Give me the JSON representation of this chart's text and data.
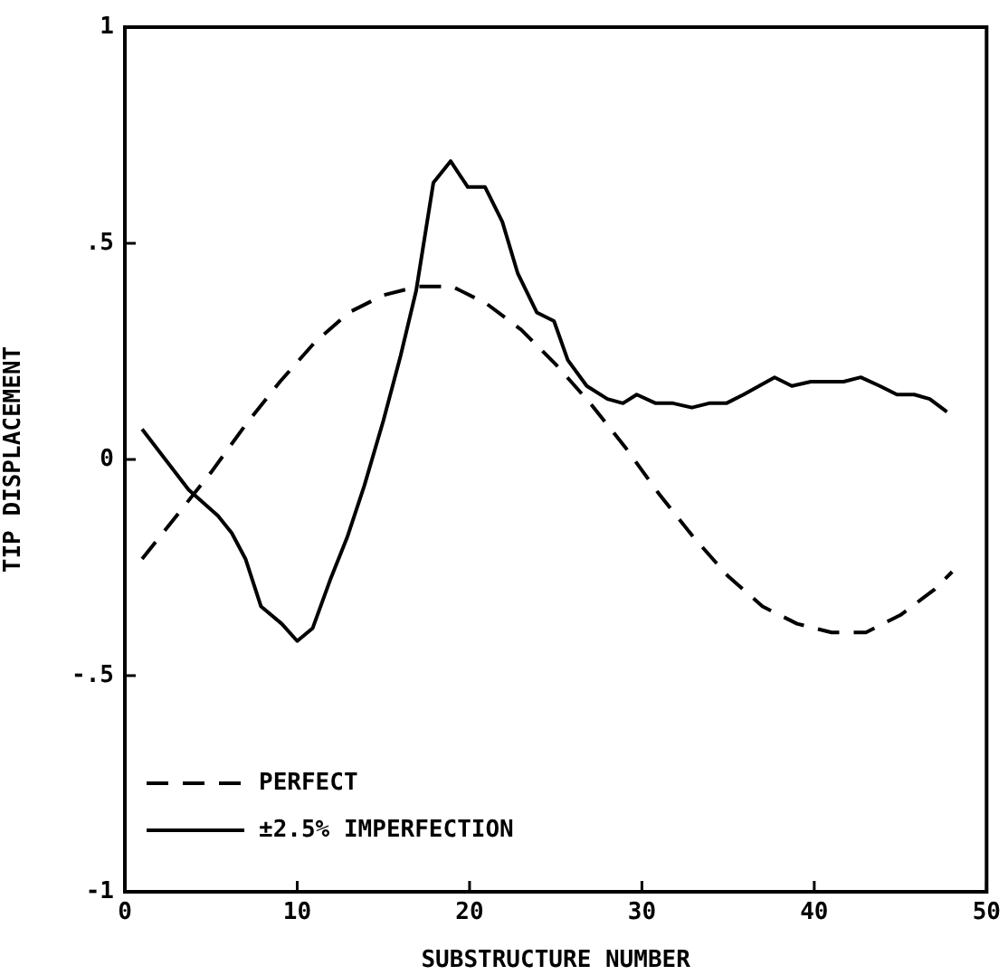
{
  "chart_data": {
    "type": "line",
    "xlabel": "SUBSTRUCTURE NUMBER",
    "ylabel": "TIP DISPLACEMENT",
    "xlim": [
      0,
      50
    ],
    "xticks": [
      0,
      10,
      20,
      30,
      40,
      50
    ],
    "ylim": [
      -1,
      1
    ],
    "yticks": [
      {
        "value": -1,
        "label": "-1"
      },
      {
        "value": -0.5,
        "label": "-.5"
      },
      0,
      {
        "value": 0.5,
        "label": ".5"
      },
      1
    ],
    "grid": false,
    "legend": "bottom left",
    "marker": "none",
    "series": [
      {
        "name": "PERFECT",
        "color": "#000000",
        "line_style": "dashed",
        "x": [
          1,
          3,
          5,
          7,
          9,
          11,
          13,
          15,
          17,
          19,
          21,
          23,
          25,
          27,
          29,
          31,
          33,
          35,
          37,
          39,
          41,
          43,
          45,
          47,
          48
        ],
        "values": [
          -0.23,
          -0.13,
          -0.03,
          0.08,
          0.18,
          0.27,
          0.34,
          0.38,
          0.4,
          0.4,
          0.36,
          0.3,
          0.22,
          0.13,
          0.03,
          -0.08,
          -0.18,
          -0.27,
          -0.34,
          -0.38,
          -0.4,
          -0.4,
          -0.36,
          -0.3,
          -0.26
        ]
      },
      {
        "name": "±2.5% IMPERFECTION",
        "color": "#000000",
        "line_style": "solid",
        "x": [
          1,
          3.7,
          5.4,
          6.2,
          7,
          7.9,
          9.1,
          10,
          10.9,
          11.9,
          12.9,
          13.9,
          15,
          16,
          16.9,
          17.9,
          18.9,
          19.9,
          20.9,
          21.9,
          22.8,
          23.9,
          24.9,
          25.7,
          26.8,
          28,
          28.9,
          29.7,
          30.8,
          31.8,
          32.9,
          33.9,
          34.9,
          35.9,
          36.8,
          37.7,
          38.7,
          39.8,
          40.8,
          41.7,
          42.7,
          43.8,
          44.8,
          45.8,
          46.7,
          47.7
        ],
        "values": [
          0.07,
          -0.07,
          -0.13,
          -0.17,
          -0.23,
          -0.34,
          -0.38,
          -0.42,
          -0.39,
          -0.28,
          -0.18,
          -0.06,
          0.09,
          0.24,
          0.39,
          0.64,
          0.69,
          0.63,
          0.63,
          0.55,
          0.43,
          0.34,
          0.32,
          0.23,
          0.17,
          0.14,
          0.13,
          0.15,
          0.13,
          0.13,
          0.12,
          0.13,
          0.13,
          0.15,
          0.17,
          0.19,
          0.17,
          0.18,
          0.18,
          0.18,
          0.19,
          0.17,
          0.15,
          0.15,
          0.14,
          0.11
        ]
      }
    ]
  }
}
